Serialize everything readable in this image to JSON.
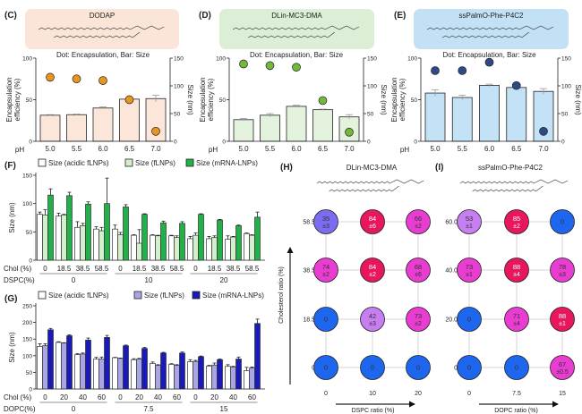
{
  "chart_data": [
    {
      "panel": "(C)",
      "type": "bar+scatter",
      "lipid": "DODAP",
      "subtitle": "Dot: Encapsulation, Bar: Size",
      "xlabel": "pH",
      "categories": [
        "5.0",
        "5.5",
        "6.0",
        "6.5",
        "7.0"
      ],
      "ylabel_left": [
        "Encapsulation",
        "efficiency (%)"
      ],
      "ylabel_right": "Size (nm)",
      "ylim_left": [
        0,
        100
      ],
      "ylim_right": [
        0,
        150
      ],
      "yticks_left": [
        "0",
        "50",
        "100"
      ],
      "yticks_right": [
        "0",
        "50",
        "100",
        "150"
      ],
      "size": [
        47,
        48,
        60,
        76,
        77
      ],
      "size_err": [
        1,
        1,
        2,
        3,
        6
      ],
      "encapsulation": [
        77,
        75,
        73,
        50,
        12
      ],
      "encapsulation_err": [
        2,
        2,
        4,
        3,
        2
      ],
      "bar_color": "#fce6d9",
      "dot_color": "#e8961e",
      "box_color": "#fbe5d8"
    },
    {
      "panel": "(D)",
      "type": "bar+scatter",
      "lipid": "DLin-MC3-DMA",
      "subtitle": "Dot: Encapsulation, Bar: Size",
      "xlabel": "pH",
      "categories": [
        "5.0",
        "5.5",
        "6.0",
        "6.5",
        "7.0"
      ],
      "ylabel_left": [
        "Encapsulation",
        "efficiency (%)"
      ],
      "ylabel_right": "Size (nm)",
      "ylim_left": [
        0,
        100
      ],
      "ylim_right": [
        0,
        150
      ],
      "yticks_left": [
        "0",
        "50",
        "100"
      ],
      "yticks_right": [
        "0",
        "50",
        "100",
        "150"
      ],
      "size": [
        39,
        47,
        63,
        57,
        44
      ],
      "size_err": [
        2,
        3,
        2,
        1,
        4
      ],
      "encapsulation": [
        93,
        91,
        89,
        49,
        11
      ],
      "encapsulation_err": [
        1,
        1,
        1,
        1,
        2
      ],
      "bar_color": "#e2f2dc",
      "dot_color": "#72b83a",
      "box_color": "#dcefd6"
    },
    {
      "panel": "(E)",
      "type": "bar+scatter",
      "lipid": "ssPalmO-Phe-P4C2",
      "subtitle": "Dot: Encapsulation, Bar: Size",
      "xlabel": "pH",
      "categories": [
        "5.0",
        "5.5",
        "6.0",
        "6.5",
        "7.0"
      ],
      "ylabel_left": [
        "Encapsulation",
        "efficiency (%)"
      ],
      "ylabel_right": "Size (nm)",
      "ylim_left": [
        0,
        100
      ],
      "ylim_right": [
        0,
        150
      ],
      "yticks_left": [
        "0",
        "50",
        "100"
      ],
      "yticks_right": [
        "0",
        "50",
        "100",
        "150"
      ],
      "size": [
        87,
        79,
        101,
        97,
        90
      ],
      "size_err": [
        6,
        4,
        2,
        2,
        5
      ],
      "encapsulation": [
        85,
        85,
        95,
        67,
        12
      ],
      "encapsulation_err": [
        1,
        1,
        1,
        1,
        4
      ],
      "bar_color": "#c4e2f6",
      "dot_color": "#2e4a86",
      "box_color": "#c2e1f5"
    },
    {
      "panel": "(F)",
      "type": "bar",
      "ylabel": "Size (nm)",
      "ylim": [
        0,
        150
      ],
      "yticks": [
        "0",
        "50",
        "100",
        "150"
      ],
      "x_label_1": "Chol (%)",
      "x_label_2": "DSPC(%)",
      "groups": [
        {
          "label": "0",
          "chol": [
            "0",
            "18.5",
            "38.5",
            "58.5"
          ]
        },
        {
          "label": "10",
          "chol": [
            "0",
            "18.5",
            "38.5",
            "58.5"
          ]
        },
        {
          "label": "20",
          "chol": [
            "0",
            "18.5",
            "38.5",
            "58.5"
          ]
        }
      ],
      "series": [
        {
          "name": "Size (acidic fLNPs)",
          "color": "#ffffff",
          "values": [
            81,
            78,
            58,
            55,
            55,
            44,
            44,
            43,
            38,
            38,
            37,
            47
          ],
          "err": [
            4,
            5,
            10,
            4,
            7,
            1,
            1,
            1,
            4,
            4,
            6,
            1
          ]
        },
        {
          "name": "Size (fLNPs)",
          "color": "#d4efcc",
          "values": [
            80,
            80,
            61,
            52,
            45,
            30,
            43,
            40,
            44,
            40,
            41,
            44
          ],
          "err": [
            9,
            1,
            4,
            6,
            4,
            24,
            1,
            3,
            4,
            3,
            1,
            1
          ]
        },
        {
          "name": "Size (mRNA-LNPs)",
          "color": "#22b04a",
          "values": [
            115,
            114,
            99,
            100,
            94,
            81,
            66,
            65,
            81,
            71,
            61,
            76
          ],
          "err": [
            11,
            6,
            4,
            45,
            4,
            1,
            3,
            3,
            1,
            1,
            1,
            9
          ]
        }
      ]
    },
    {
      "panel": "(G)",
      "type": "bar",
      "ylabel": "Size (nm)",
      "ylim": [
        0,
        250
      ],
      "yticks": [
        "0",
        "50",
        "100",
        "150",
        "200",
        "250"
      ],
      "x_label_1": "Chol (%)",
      "x_label_2": "DOPC(%)",
      "groups": [
        {
          "label": "0",
          "chol": [
            "0",
            "20",
            "40",
            "60"
          ]
        },
        {
          "label": "7.5",
          "chol": [
            "0",
            "20",
            "40",
            "60"
          ]
        },
        {
          "label": "15",
          "chol": [
            "0",
            "20",
            "40",
            "60"
          ]
        }
      ],
      "series": [
        {
          "name": "Size (acidic fLNPs)",
          "color": "#ffffff",
          "values": [
            128,
            140,
            103,
            90,
            94,
            88,
            77,
            74,
            82,
            69,
            68,
            55
          ],
          "err": [
            8,
            2,
            3,
            5,
            1,
            3,
            4,
            2,
            6,
            2,
            5,
            10
          ]
        },
        {
          "name": "Size (fLNPs)",
          "color": "#a9a6e6",
          "values": [
            130,
            138,
            105,
            90,
            92,
            90,
            71,
            71,
            83,
            72,
            66,
            63
          ],
          "err": [
            6,
            1,
            3,
            6,
            1,
            2,
            2,
            2,
            3,
            6,
            2,
            3
          ]
        },
        {
          "name": "Size (mRNA-LNPs)",
          "color": "#1a1ab8",
          "values": [
            178,
            160,
            147,
            155,
            130,
            122,
            108,
            108,
            97,
            88,
            90,
            197
          ],
          "err": [
            4,
            3,
            6,
            6,
            2,
            3,
            2,
            3,
            2,
            2,
            6,
            13
          ]
        }
      ]
    },
    {
      "panel": "(H)",
      "type": "heatmap",
      "title": "DLin-MC3-DMA",
      "xlabel": "DSPC ratio (%)",
      "ylabel": "Cholesterol ratio (%)",
      "x": [
        "0",
        "10",
        "20"
      ],
      "y": [
        "0",
        "18.5",
        "38.5",
        "58.5"
      ],
      "cells": [
        [
          {
            "v": "0"
          },
          {
            "v": "0"
          },
          {
            "v": "0"
          }
        ],
        [
          {
            "v": "0"
          },
          {
            "v": "42",
            "e": "±3"
          },
          {
            "v": "73",
            "e": "±2"
          }
        ],
        [
          {
            "v": "74",
            "e": "±2"
          },
          {
            "v": "84",
            "e": "±2"
          },
          {
            "v": "68",
            "e": "±6"
          }
        ],
        [
          {
            "v": "35",
            "e": "±3"
          },
          {
            "v": "84",
            "e": "±6"
          },
          {
            "v": "66",
            "e": "±2"
          }
        ]
      ]
    },
    {
      "panel": "(I)",
      "type": "heatmap",
      "title": "ssPalmO-Phe-P4C2",
      "xlabel": "DOPC ratio (%)",
      "ylabel": "",
      "x": [
        "0",
        "7.5",
        "15"
      ],
      "y": [
        "0",
        "20.0",
        "40.0",
        "60.0"
      ],
      "cells": [
        [
          {
            "v": "0"
          },
          {
            "v": "0"
          },
          {
            "v": "67",
            "e": "±0.5"
          }
        ],
        [
          {
            "v": "0"
          },
          {
            "v": "71",
            "e": "±4"
          },
          {
            "v": "88",
            "e": "±1"
          }
        ],
        [
          {
            "v": "73",
            "e": "±1"
          },
          {
            "v": "88",
            "e": "±4"
          },
          {
            "v": "78",
            "e": "±3"
          }
        ],
        [
          {
            "v": "53",
            "e": "±1"
          },
          {
            "v": "85",
            "e": "±2"
          },
          {
            "v": "0"
          }
        ]
      ]
    }
  ]
}
